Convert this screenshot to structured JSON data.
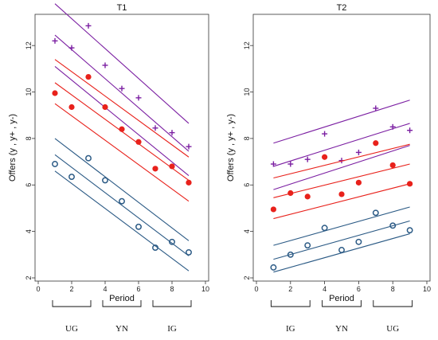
{
  "chart_data": [
    {
      "type": "scatter",
      "title": "T1",
      "xlabel": "Period",
      "ylabel": "Offers (y , y+ , y-)",
      "xlim": [
        0,
        10
      ],
      "ylim": [
        2,
        13
      ],
      "xticks": [
        0,
        2,
        4,
        6,
        8,
        10
      ],
      "yticks": [
        2,
        4,
        6,
        8,
        10,
        12
      ],
      "grid": false,
      "series": [
        {
          "marker": "plus",
          "color": "#7b1fa2",
          "x": [
            1,
            2,
            3,
            4,
            5,
            6,
            7,
            8,
            9
          ],
          "y": [
            12.2,
            11.9,
            12.85,
            11.15,
            10.15,
            9.75,
            8.45,
            8.25,
            7.65
          ],
          "fit": [
            12.45,
            7.45
          ],
          "band_upper": [
            13.8,
            8.65
          ],
          "band_lower": [
            11.1,
            6.4
          ]
        },
        {
          "marker": "dot",
          "color": "#e8211b",
          "x": [
            1,
            2,
            3,
            4,
            5,
            6,
            7,
            8,
            9
          ],
          "y": [
            9.95,
            9.35,
            10.65,
            9.35,
            8.4,
            7.85,
            6.7,
            6.8,
            6.1
          ],
          "fit": [
            10.4,
            6.2
          ],
          "band_upper": [
            11.4,
            7.2
          ],
          "band_lower": [
            9.5,
            5.3
          ]
        },
        {
          "marker": "circle",
          "color": "#2b5a85",
          "x": [
            1,
            2,
            3,
            4,
            5,
            6,
            7,
            8,
            9
          ],
          "y": [
            6.9,
            6.35,
            7.15,
            6.2,
            5.3,
            4.2,
            3.3,
            3.55,
            3.1
          ],
          "fit": [
            7.3,
            2.95
          ],
          "band_upper": [
            8.0,
            3.6
          ],
          "band_lower": [
            6.6,
            2.3
          ]
        }
      ],
      "phases": [
        "UG",
        "YN",
        "IG"
      ]
    },
    {
      "type": "scatter",
      "title": "T2",
      "xlabel": "Period",
      "ylabel": "Offers (y , y+ , y-)",
      "xlim": [
        0,
        10
      ],
      "ylim": [
        2,
        13
      ],
      "xticks": [
        0,
        2,
        4,
        6,
        8,
        10
      ],
      "yticks": [
        2,
        4,
        6,
        8,
        10,
        12
      ],
      "grid": false,
      "series": [
        {
          "marker": "plus",
          "color": "#7b1fa2",
          "x": [
            1,
            2,
            3,
            4,
            5,
            6,
            7,
            8,
            9
          ],
          "y": [
            6.9,
            6.9,
            7.1,
            8.2,
            7.05,
            7.4,
            9.3,
            8.5,
            8.35
          ],
          "fit": [
            6.8,
            8.65
          ],
          "band_upper": [
            7.8,
            9.65
          ],
          "band_lower": [
            5.8,
            7.7
          ]
        },
        {
          "marker": "dot",
          "color": "#e8211b",
          "x": [
            1,
            2,
            3,
            4,
            5,
            6,
            7,
            8,
            9
          ],
          "y": [
            4.95,
            5.65,
            5.5,
            7.2,
            5.6,
            6.1,
            7.8,
            6.85,
            6.05
          ],
          "fit": [
            5.45,
            6.9
          ],
          "band_upper": [
            6.3,
            7.75
          ],
          "band_lower": [
            4.55,
            6.05
          ]
        },
        {
          "marker": "circle",
          "color": "#2b5a85",
          "x": [
            1,
            2,
            3,
            4,
            5,
            6,
            7,
            8,
            9
          ],
          "y": [
            2.45,
            3.0,
            3.4,
            4.15,
            3.2,
            3.55,
            4.8,
            4.25,
            4.05
          ],
          "fit": [
            2.8,
            4.45
          ],
          "band_upper": [
            3.4,
            5.05
          ],
          "band_lower": [
            2.25,
            3.9
          ]
        }
      ],
      "phases": [
        "IG",
        "YN",
        "UG"
      ]
    }
  ]
}
